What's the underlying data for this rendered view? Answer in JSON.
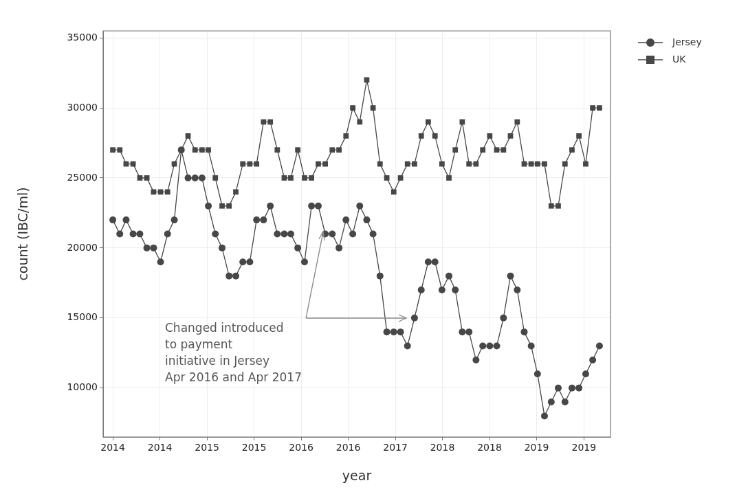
{
  "chart_data": {
    "type": "line",
    "xlabel": "year",
    "ylabel": "count (IBC/ml)",
    "x": [
      "2014-01",
      "2014-02",
      "2014-03",
      "2014-04",
      "2014-05",
      "2014-06",
      "2014-07",
      "2014-08",
      "2014-09",
      "2014-10",
      "2014-11",
      "2014-12",
      "2015-01",
      "2015-02",
      "2015-03",
      "2015-04",
      "2015-05",
      "2015-06",
      "2015-07",
      "2015-08",
      "2015-09",
      "2015-10",
      "2015-11",
      "2015-12",
      "2016-01",
      "2016-02",
      "2016-03",
      "2016-04",
      "2016-05",
      "2016-06",
      "2016-07",
      "2016-08",
      "2016-09",
      "2016-10",
      "2016-11",
      "2016-12",
      "2017-01",
      "2017-02",
      "2017-03",
      "2017-04",
      "2017-05",
      "2017-06",
      "2017-07",
      "2017-08",
      "2017-09",
      "2017-10",
      "2017-11",
      "2017-12",
      "2018-01",
      "2018-02",
      "2018-03",
      "2018-04",
      "2018-05",
      "2018-06",
      "2018-07",
      "2018-08",
      "2018-09",
      "2018-10",
      "2018-11",
      "2018-12",
      "2019-01",
      "2019-02",
      "2019-03",
      "2019-04",
      "2019-05",
      "2019-06",
      "2019-07",
      "2019-08",
      "2019-09",
      "2019-10",
      "2019-11",
      "2019-12"
    ],
    "series": [
      {
        "name": "Jersey",
        "color": "#474747",
        "marker": "circle",
        "values": [
          22000,
          21000,
          22000,
          21000,
          21000,
          20000,
          20000,
          19000,
          21000,
          22000,
          27000,
          25000,
          25000,
          25000,
          23000,
          21000,
          20000,
          18000,
          18000,
          19000,
          19000,
          22000,
          22000,
          23000,
          21000,
          21000,
          21000,
          20000,
          19000,
          23000,
          23000,
          21000,
          21000,
          20000,
          22000,
          21000,
          23000,
          22000,
          21000,
          18000,
          14000,
          14000,
          14000,
          13000,
          15000,
          17000,
          19000,
          19000,
          17000,
          18000,
          17000,
          14000,
          14000,
          12000,
          13000,
          13000,
          13000,
          15000,
          18000,
          17000,
          14000,
          13000,
          11000,
          8000,
          9000,
          10000,
          9000,
          10000,
          10000,
          11000,
          12000,
          13000
        ]
      },
      {
        "name": "UK",
        "color": "#474747",
        "marker": "square",
        "values": [
          27000,
          27000,
          26000,
          26000,
          25000,
          25000,
          24000,
          24000,
          24000,
          26000,
          27000,
          28000,
          27000,
          27000,
          27000,
          25000,
          23000,
          23000,
          24000,
          26000,
          26000,
          26000,
          29000,
          29000,
          27000,
          25000,
          25000,
          27000,
          25000,
          25000,
          26000,
          26000,
          27000,
          27000,
          28000,
          30000,
          29000,
          32000,
          30000,
          26000,
          25000,
          24000,
          25000,
          26000,
          26000,
          28000,
          29000,
          28000,
          26000,
          25000,
          27000,
          29000,
          26000,
          26000,
          27000,
          28000,
          27000,
          27000,
          28000,
          29000,
          26000,
          26000,
          26000,
          26000,
          23000,
          23000,
          26000,
          27000,
          28000,
          26000,
          30000,
          30000
        ]
      }
    ],
    "xlim": [
      "2013-11-19",
      "2020-01-19"
    ],
    "xticks": [
      {
        "value": "2014-01-01",
        "label": "2014"
      },
      {
        "value": "2014-07-29",
        "label": "2014"
      },
      {
        "value": "2015-02-23",
        "label": "2015"
      },
      {
        "value": "2015-09-20",
        "label": "2015"
      },
      {
        "value": "2016-04-16",
        "label": "2016"
      },
      {
        "value": "2016-11-11",
        "label": "2016"
      },
      {
        "value": "2017-06-08",
        "label": "2017"
      },
      {
        "value": "2018-01-03",
        "label": "2018"
      },
      {
        "value": "2018-07-31",
        "label": "2018"
      },
      {
        "value": "2019-02-25",
        "label": "2019"
      },
      {
        "value": "2019-09-23",
        "label": "2019"
      }
    ],
    "ylim": [
      6500,
      35500
    ],
    "yticks": [
      10000,
      15000,
      20000,
      25000,
      30000,
      35000
    ],
    "grid": true,
    "legend": "top right",
    "line_style": "solid",
    "annotations": [
      "Changed introduced\nto payment\ninitiative in Jersey\nApr 2016 and Apr 2017"
    ]
  }
}
